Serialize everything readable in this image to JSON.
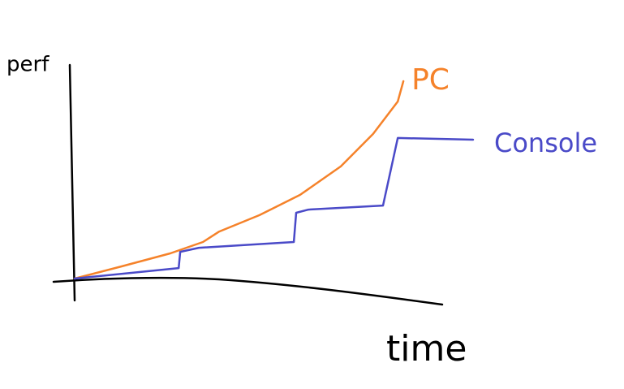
{
  "chart_data": {
    "type": "line",
    "x_label": "time",
    "y_label": "perf",
    "xlim": [
      0,
      100
    ],
    "ylim": [
      0,
      100
    ],
    "series": [
      {
        "name": "PC",
        "color": "#f5822a",
        "x": [
          0,
          11.8,
          24,
          32.2,
          36.3,
          46.4,
          56.6,
          66.8,
          74.9,
          81.1,
          82.5
        ],
        "values": [
          0,
          5.7,
          11.8,
          17.1,
          22,
          29.7,
          39.2,
          52.5,
          67.7,
          82.9,
          92.4
        ]
      },
      {
        "name": "Console",
        "color": "#4a4ac8",
        "x": [
          0,
          26.1,
          26.5,
          31.2,
          55,
          55.6,
          58.7,
          77.4,
          81.1,
          100
        ],
        "values": [
          0,
          4.9,
          12.5,
          14.4,
          17.1,
          30.8,
          32.3,
          34.2,
          65.8,
          65
        ]
      }
    ]
  }
}
